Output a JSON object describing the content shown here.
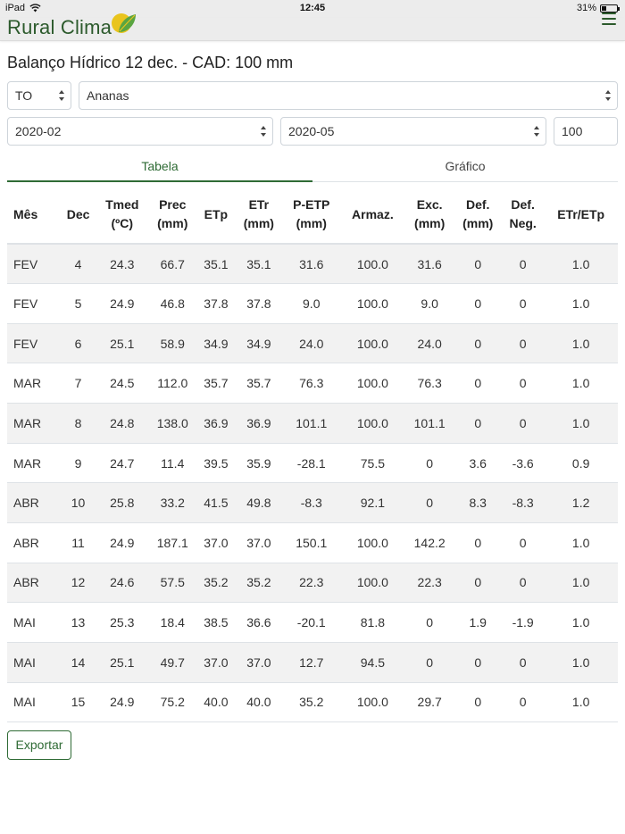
{
  "status_bar": {
    "device": "iPad",
    "time": "12:45",
    "battery": "31%",
    "battery_level": 0.31
  },
  "navbar": {
    "brand": "Rural Clima",
    "colors": {
      "brand": "#2c5a2c",
      "accent": "#2f6b35",
      "logo_yellow": "#e9c41d",
      "logo_green": "#5aa541"
    }
  },
  "page": {
    "title": "Balanço Hídrico 12 dec. - CAD: 100 mm"
  },
  "filters": {
    "state": "TO",
    "crop": "Ananas",
    "start": "2020-02",
    "end": "2020-05",
    "cad": "100"
  },
  "tabs": [
    {
      "label": "Tabela",
      "active": true
    },
    {
      "label": "Gráfico",
      "active": false
    }
  ],
  "table": {
    "headers": [
      [
        "Mês"
      ],
      [
        "Dec"
      ],
      [
        "Tmed",
        "(ºC)"
      ],
      [
        "Prec",
        "(mm)"
      ],
      [
        "ETp"
      ],
      [
        "ETr",
        "(mm)"
      ],
      [
        "P-ETP",
        "(mm)"
      ],
      [
        "Armaz."
      ],
      [
        "Exc.",
        "(mm)"
      ],
      [
        "Def.",
        "(mm)"
      ],
      [
        "Def.",
        "Neg."
      ],
      [
        "ETr/ETp"
      ]
    ],
    "rows": [
      [
        "FEV",
        "4",
        "24.3",
        "66.7",
        "35.1",
        "35.1",
        "31.6",
        "100.0",
        "31.6",
        "0",
        "0",
        "1.0"
      ],
      [
        "FEV",
        "5",
        "24.9",
        "46.8",
        "37.8",
        "37.8",
        "9.0",
        "100.0",
        "9.0",
        "0",
        "0",
        "1.0"
      ],
      [
        "FEV",
        "6",
        "25.1",
        "58.9",
        "34.9",
        "34.9",
        "24.0",
        "100.0",
        "24.0",
        "0",
        "0",
        "1.0"
      ],
      [
        "MAR",
        "7",
        "24.5",
        "112.0",
        "35.7",
        "35.7",
        "76.3",
        "100.0",
        "76.3",
        "0",
        "0",
        "1.0"
      ],
      [
        "MAR",
        "8",
        "24.8",
        "138.0",
        "36.9",
        "36.9",
        "101.1",
        "100.0",
        "101.1",
        "0",
        "0",
        "1.0"
      ],
      [
        "MAR",
        "9",
        "24.7",
        "11.4",
        "39.5",
        "35.9",
        "-28.1",
        "75.5",
        "0",
        "3.6",
        "-3.6",
        "0.9"
      ],
      [
        "ABR",
        "10",
        "25.8",
        "33.2",
        "41.5",
        "49.8",
        "-8.3",
        "92.1",
        "0",
        "8.3",
        "-8.3",
        "1.2"
      ],
      [
        "ABR",
        "11",
        "24.9",
        "187.1",
        "37.0",
        "37.0",
        "150.1",
        "100.0",
        "142.2",
        "0",
        "0",
        "1.0"
      ],
      [
        "ABR",
        "12",
        "24.6",
        "57.5",
        "35.2",
        "35.2",
        "22.3",
        "100.0",
        "22.3",
        "0",
        "0",
        "1.0"
      ],
      [
        "MAI",
        "13",
        "25.3",
        "18.4",
        "38.5",
        "36.6",
        "-20.1",
        "81.8",
        "0",
        "1.9",
        "-1.9",
        "1.0"
      ],
      [
        "MAI",
        "14",
        "25.1",
        "49.7",
        "37.0",
        "37.0",
        "12.7",
        "94.5",
        "0",
        "0",
        "0",
        "1.0"
      ],
      [
        "MAI",
        "15",
        "24.9",
        "75.2",
        "40.0",
        "40.0",
        "35.2",
        "100.0",
        "29.7",
        "0",
        "0",
        "1.0"
      ]
    ]
  },
  "export_label": "Exportar"
}
